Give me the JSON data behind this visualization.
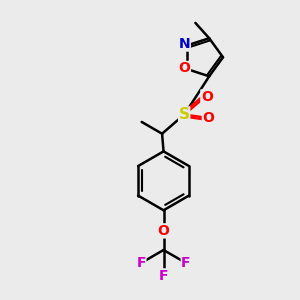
{
  "background_color": "#ebebeb",
  "atom_colors": {
    "C": "#000000",
    "N": "#0000cc",
    "O": "#ff0000",
    "S": "#cccc00",
    "F": "#cc00cc"
  },
  "bond_color": "#000000",
  "bond_width": 1.8,
  "font_size": 10,
  "fig_size": [
    3.0,
    3.0
  ],
  "dpi": 100
}
